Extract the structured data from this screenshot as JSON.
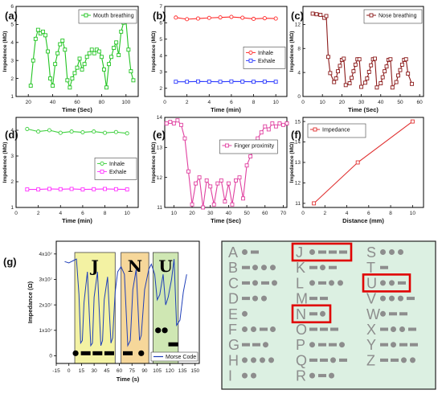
{
  "chart_data": [
    {
      "panel": "(a)",
      "type": "line",
      "xlabel": "Time (Sec)",
      "ylabel": "Impedence (MΩ)",
      "xlim": [
        10,
        110
      ],
      "ylim": [
        1,
        6
      ],
      "xticks": [
        20,
        40,
        60,
        80,
        100
      ],
      "yticks": [
        1,
        2,
        3,
        4,
        5,
        6
      ],
      "legend_position": "top-right",
      "series": [
        {
          "name": "Mouth breathing",
          "color": "#22c422",
          "marker": "square",
          "x": [
            22,
            24,
            26,
            28,
            30,
            32,
            34,
            36,
            38,
            40,
            42,
            44,
            46,
            48,
            50,
            52,
            54,
            56,
            58,
            60,
            62,
            64,
            66,
            68,
            70,
            72,
            74,
            76,
            78,
            80,
            82,
            84,
            86,
            88,
            90,
            92,
            94,
            96,
            98,
            100,
            102,
            104,
            106
          ],
          "y": [
            1.6,
            3.0,
            4.2,
            4.7,
            4.5,
            4.6,
            4.4,
            3.5,
            2.0,
            1.6,
            2.8,
            3.4,
            3.9,
            4.1,
            3.6,
            1.9,
            1.5,
            2.0,
            2.3,
            2.6,
            3.1,
            2.5,
            2.8,
            3.2,
            3.4,
            3.6,
            3.4,
            3.6,
            3.5,
            3.2,
            2.5,
            1.5,
            2.8,
            3.2,
            3.7,
            4.0,
            3.3,
            4.6,
            5.1,
            5.2,
            3.6,
            2.4,
            1.9
          ]
        }
      ]
    },
    {
      "panel": "(b)",
      "type": "line",
      "xlabel": "Time (min)",
      "ylabel": "Impedance (MΩ)",
      "xlim": [
        0,
        11
      ],
      "ylim": [
        1.5,
        7
      ],
      "xticks": [
        0,
        2,
        4,
        6,
        8,
        10
      ],
      "yticks": [
        2,
        3,
        4,
        5,
        6,
        7
      ],
      "legend_position": "center-right",
      "series": [
        {
          "name": "Inhale",
          "color": "#ff2a2a",
          "marker": "circle",
          "x": [
            1,
            2,
            3,
            4,
            5,
            6,
            7,
            8,
            9,
            10
          ],
          "y": [
            6.32,
            6.22,
            6.26,
            6.3,
            6.33,
            6.36,
            6.31,
            6.24,
            6.28,
            6.26
          ]
        },
        {
          "name": "Exhale",
          "color": "#2f3dff",
          "marker": "square",
          "x": [
            1,
            2,
            3,
            4,
            5,
            6,
            7,
            8,
            9,
            10
          ],
          "y": [
            2.4,
            2.4,
            2.42,
            2.41,
            2.4,
            2.42,
            2.41,
            2.4,
            2.41,
            2.4
          ]
        }
      ]
    },
    {
      "panel": "(c)",
      "type": "line",
      "xlabel": "Time (Sec)",
      "ylabel": "Impedence (MΩ)",
      "xlim": [
        0,
        62
      ],
      "ylim": [
        0,
        15
      ],
      "xticks": [
        0,
        10,
        20,
        30,
        40,
        50,
        60
      ],
      "yticks": [
        0,
        4,
        8,
        12
      ],
      "legend_position": "top-right",
      "series": [
        {
          "name": "Nose breathing",
          "color": "#8b1a1a",
          "marker": "square",
          "x": [
            5,
            7,
            9,
            11,
            12,
            13,
            14,
            16,
            17,
            18,
            19,
            20,
            21,
            22,
            24,
            25,
            26,
            27,
            28,
            29,
            30,
            32,
            33,
            34,
            35,
            36,
            37,
            38,
            40,
            41,
            42,
            43,
            44,
            45,
            46,
            48,
            49,
            50,
            51,
            52,
            53,
            54,
            56
          ],
          "y": [
            13.8,
            13.7,
            13.6,
            13.1,
            13.4,
            6.6,
            3.9,
            2.4,
            3.0,
            4.2,
            5.1,
            6.1,
            6.3,
            1.9,
            2.2,
            3.1,
            4.2,
            5.3,
            6.2,
            6.2,
            1.6,
            2.3,
            3.0,
            4.1,
            5.2,
            6.2,
            6.3,
            1.5,
            2.2,
            3.2,
            4.2,
            5.0,
            6.1,
            6.2,
            1.5,
            2.4,
            3.5,
            4.4,
            5.3,
            6.1,
            6.2,
            3.8,
            2.1
          ]
        }
      ]
    },
    {
      "panel": "(d)",
      "type": "line",
      "xlabel": "Time (min)",
      "ylabel": "Impedence (MΩ)",
      "xlim": [
        0,
        11
      ],
      "ylim": [
        1,
        4.5
      ],
      "xticks": [
        0,
        2,
        4,
        6,
        8,
        10
      ],
      "yticks": [
        1,
        2,
        3,
        4
      ],
      "legend_position": "center-right",
      "series": [
        {
          "name": "Inhale",
          "color": "#3ccf3c",
          "marker": "circle",
          "x": [
            1,
            2,
            3,
            4,
            5,
            6,
            7,
            8,
            9,
            10
          ],
          "y": [
            4.05,
            3.95,
            4.0,
            3.9,
            3.95,
            3.92,
            3.95,
            3.9,
            3.93,
            3.88
          ]
        },
        {
          "name": "Exhale",
          "color": "#ff33ff",
          "marker": "square",
          "x": [
            1,
            2,
            3,
            4,
            5,
            6,
            7,
            8,
            9,
            10
          ],
          "y": [
            1.7,
            1.7,
            1.72,
            1.71,
            1.72,
            1.7,
            1.71,
            1.72,
            1.71,
            1.7
          ]
        }
      ]
    },
    {
      "panel": "(e)",
      "type": "line",
      "xlabel": "Time (Sec)",
      "ylabel": "Impedence (MΩ)",
      "xlim": [
        5,
        72
      ],
      "ylim": [
        11,
        14
      ],
      "xticks": [
        10,
        20,
        30,
        40,
        50,
        60,
        70
      ],
      "yticks": [
        11,
        12,
        13,
        14
      ],
      "legend_position": "top-center",
      "series": [
        {
          "name": "Finger proximity",
          "color": "#e040a0",
          "marker": "square",
          "x": [
            6,
            8,
            10,
            12,
            14,
            16,
            18,
            20,
            22,
            24,
            26,
            28,
            30,
            32,
            34,
            36,
            38,
            40,
            42,
            44,
            46,
            48,
            50,
            52,
            54,
            56,
            58,
            60,
            62,
            64,
            66,
            68,
            70,
            72
          ],
          "y": [
            13.8,
            13.85,
            13.8,
            13.9,
            13.75,
            13.3,
            12.2,
            11.1,
            11.8,
            12.0,
            11.0,
            11.9,
            11.7,
            11.1,
            11.8,
            11.9,
            11.2,
            11.8,
            11.1,
            11.9,
            12.0,
            11.3,
            12.4,
            12.7,
            13.0,
            13.3,
            13.5,
            13.7,
            13.6,
            13.8,
            13.7,
            13.8,
            13.75,
            13.8
          ]
        }
      ]
    },
    {
      "panel": "(f)",
      "type": "line",
      "xlabel": "Distance (mm)",
      "ylabel": "Impedance (MΩ)",
      "xlim": [
        0,
        11
      ],
      "ylim": [
        10.8,
        15.2
      ],
      "xticks": [
        0,
        2,
        4,
        6,
        8,
        10
      ],
      "yticks": [
        11,
        12,
        13,
        14,
        15
      ],
      "legend_position": "top-left",
      "series": [
        {
          "name": "Impedance",
          "color": "#e03030",
          "marker": "square",
          "x": [
            1,
            5,
            10
          ],
          "y": [
            11,
            13,
            15
          ]
        }
      ]
    },
    {
      "panel": "(g)",
      "type": "line",
      "xlabel": "Time (s)",
      "ylabel": "Impedance (Ω)",
      "xlim": [
        -15,
        155
      ],
      "ylim": [
        -0.3,
        4.5
      ],
      "xticks": [
        -15,
        0,
        15,
        30,
        45,
        60,
        75,
        90,
        105,
        120,
        135,
        150
      ],
      "yticks": [
        0,
        1,
        2,
        3,
        4
      ],
      "ytick_labels": [
        "0",
        "1x10⁷",
        "2x10⁷",
        "3x10⁷",
        "4x10⁷"
      ],
      "regions": [
        {
          "label": "J",
          "x0": 7,
          "x1": 55,
          "color": "#f3f2a3"
        },
        {
          "label": "N",
          "x0": 62,
          "x1": 95,
          "color": "#f6d79a"
        },
        {
          "label": "U",
          "x0": 100,
          "x1": 130,
          "color": "#cfe7b3"
        }
      ],
      "legend_position": "bottom-right",
      "series": [
        {
          "name": "Morse Code",
          "color": "#1f3fb8",
          "x": [
            -5,
            0,
            3,
            6,
            9,
            12,
            14,
            16,
            18,
            22,
            26,
            28,
            30,
            34,
            38,
            40,
            42,
            46,
            50,
            52,
            55,
            58,
            62,
            66,
            70,
            73,
            76,
            80,
            84,
            86,
            90,
            95,
            98,
            102,
            105,
            108,
            112,
            115,
            118,
            122,
            125,
            128,
            132,
            136,
            140
          ],
          "y": [
            3.7,
            3.65,
            3.7,
            3.75,
            3.8,
            2.4,
            0.5,
            0.6,
            2.1,
            3.3,
            0.4,
            0.5,
            2.3,
            3.3,
            0.4,
            0.6,
            2.2,
            3.1,
            0.5,
            0.7,
            2.5,
            3.3,
            3.5,
            3.2,
            0.4,
            0.6,
            2.6,
            3.4,
            0.6,
            0.8,
            2.6,
            3.4,
            3.6,
            3.2,
            2.2,
            2.4,
            3.2,
            2.0,
            2.3,
            3.0,
            3.8,
            1.2,
            1.4,
            2.5,
            3.2
          ]
        }
      ],
      "morse_marks": [
        {
          "x": 8,
          "y": 0.1,
          "kind": "dot"
        },
        {
          "x": 20,
          "y": 0.1,
          "kind": "dash"
        },
        {
          "x": 34,
          "y": 0.1,
          "kind": "dash"
        },
        {
          "x": 48,
          "y": 0.1,
          "kind": "dash"
        },
        {
          "x": 70,
          "y": 0.1,
          "kind": "dash"
        },
        {
          "x": 86,
          "y": 0.1,
          "kind": "dot"
        },
        {
          "x": 106,
          "y": 1.0,
          "kind": "dot"
        },
        {
          "x": 114,
          "y": 1.0,
          "kind": "dot"
        },
        {
          "x": 124,
          "y": 0.45,
          "kind": "dash"
        }
      ]
    }
  ],
  "morse_table": {
    "column1": [
      {
        "letter": "A",
        "code": ".-"
      },
      {
        "letter": "B",
        "code": "-..."
      },
      {
        "letter": "C",
        "code": "-.-."
      },
      {
        "letter": "D",
        "code": "-.."
      },
      {
        "letter": "E",
        "code": "."
      },
      {
        "letter": "F",
        "code": "..-."
      },
      {
        "letter": "G",
        "code": "--."
      },
      {
        "letter": "H",
        "code": "...."
      },
      {
        "letter": "I",
        "code": ".."
      }
    ],
    "column2": [
      {
        "letter": "J",
        "code": ".---",
        "highlight": true
      },
      {
        "letter": "K",
        "code": "-.-"
      },
      {
        "letter": "L",
        "code": ".-.."
      },
      {
        "letter": "M",
        "code": "--"
      },
      {
        "letter": "N",
        "code": "-.",
        "highlight": true
      },
      {
        "letter": "O",
        "code": "---"
      },
      {
        "letter": "P",
        "code": ".--."
      },
      {
        "letter": "Q",
        "code": "--.-"
      },
      {
        "letter": "R",
        "code": ".-."
      }
    ],
    "column3": [
      {
        "letter": "S",
        "code": "..."
      },
      {
        "letter": "T",
        "code": "-"
      },
      {
        "letter": "U",
        "code": "..-",
        "highlight": true
      },
      {
        "letter": "V",
        "code": "...-"
      },
      {
        "letter": "W",
        "code": ".--"
      },
      {
        "letter": "X",
        "code": "-..-"
      },
      {
        "letter": "Y",
        "code": "-.--"
      },
      {
        "letter": "Z",
        "code": "--.."
      }
    ],
    "colors": {
      "background": "#dcf0e2",
      "mark": "#8d8d8d",
      "highlight": "#e00000"
    }
  }
}
